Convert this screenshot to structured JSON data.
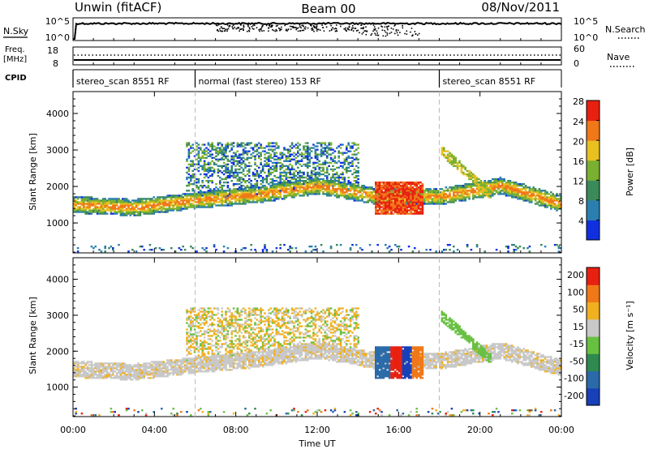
{
  "header": {
    "station": "Unwin (fitACF)",
    "beam": "Beam 00",
    "date": "08/Nov/2011"
  },
  "top_panels": {
    "nsky_label": "N.Sky",
    "nsky_ticks": [
      "10^5",
      "10^0"
    ],
    "nsearch_label": "N.Search",
    "freq_label_line1": "Freq.",
    "freq_label_line2": "[MHz]",
    "freq_ticks": [
      "18",
      "8"
    ],
    "nave_label": "Nave",
    "nave_ticks": [
      "60",
      "0"
    ],
    "cpid_label": "CPID",
    "cpid_segments": [
      {
        "label": "stereo_scan 8551 RF",
        "start_h": 0,
        "end_h": 6
      },
      {
        "label": "normal (fast stereo) 153 RF",
        "start_h": 6,
        "end_h": 18
      },
      {
        "label": "stereo_scan 8551 RF",
        "start_h": 18,
        "end_h": 24
      }
    ]
  },
  "chart_data": [
    {
      "type": "heatmap",
      "title": "",
      "xlabel": "",
      "ylabel": "Slant Range [km]",
      "xlim_hours": [
        0,
        24
      ],
      "ylim": [
        180,
        4600
      ],
      "yticks": [
        "1000",
        "2000",
        "3000",
        "4000"
      ],
      "colorbar_label": "Power [dB]",
      "colorbar_ticks": [
        "4",
        "8",
        "12",
        "16",
        "20",
        "24",
        "28"
      ],
      "colorbar_colors": [
        "#1030e0",
        "#2a7fb0",
        "#3a8a5a",
        "#7ab030",
        "#e8c020",
        "#f07818",
        "#e82010"
      ],
      "features": [
        {
          "name": "band",
          "t_start": 0,
          "t_end": 24,
          "range_center_km": [
            1480,
            1400,
            1600,
            1750,
            2000,
            1700,
            1700,
            2000,
            1500
          ],
          "level": "mid"
        },
        {
          "name": "patch",
          "t_start": 14.8,
          "t_end": 17.2,
          "range_km": [
            1200,
            2100
          ],
          "level": "high"
        }
      ]
    },
    {
      "type": "heatmap",
      "title": "",
      "xlabel": "",
      "ylabel": "Slant Range [km]",
      "xlim_hours": [
        0,
        24
      ],
      "ylim": [
        180,
        4600
      ],
      "yticks": [
        "1000",
        "2000",
        "3000",
        "4000"
      ],
      "colorbar_label": "Velocity [m s⁻¹]",
      "colorbar_ticks": [
        "200",
        "100",
        "50",
        "15",
        "-15",
        "-50",
        "-100",
        "-200"
      ],
      "colorbar_colors": [
        "#1840b8",
        "#2a6aa8",
        "#2f8a50",
        "#68c040",
        "#c8c8c8",
        "#f0b020",
        "#f07818",
        "#e82010"
      ]
    }
  ],
  "xaxis": {
    "ticks": [
      "00:00",
      "04:00",
      "08:00",
      "12:00",
      "16:00",
      "20:00",
      "00:00"
    ],
    "label": "Time UT"
  }
}
